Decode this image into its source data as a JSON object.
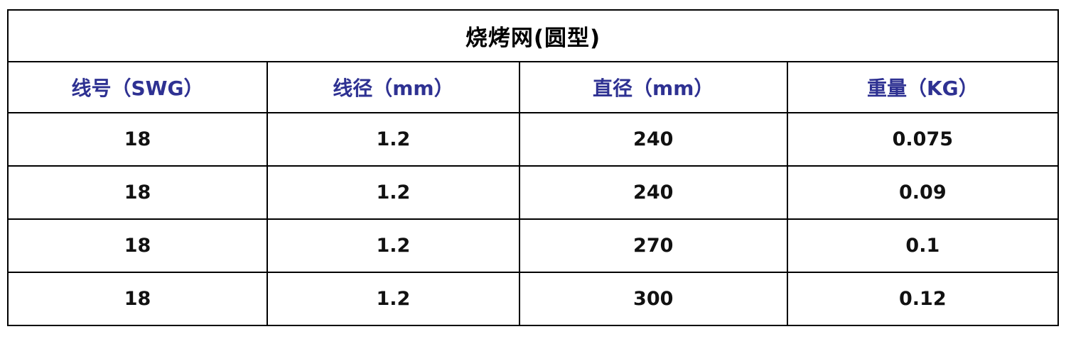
{
  "table": {
    "title": "烧烤网(圆型)",
    "columns": [
      "线号（SWG）",
      "线径（mm）",
      "直径（mm）",
      "重量（KG）"
    ],
    "rows": [
      [
        "18",
        "1.2",
        "240",
        "0.075"
      ],
      [
        "18",
        "1.2",
        "240",
        "0.09"
      ],
      [
        "18",
        "1.2",
        "270",
        "0.1"
      ],
      [
        "18",
        "1.2",
        "300",
        "0.12"
      ]
    ],
    "colors": {
      "title_text": "#000000",
      "header_text": "#2e3192",
      "border": "#000000",
      "background": "#ffffff"
    }
  }
}
